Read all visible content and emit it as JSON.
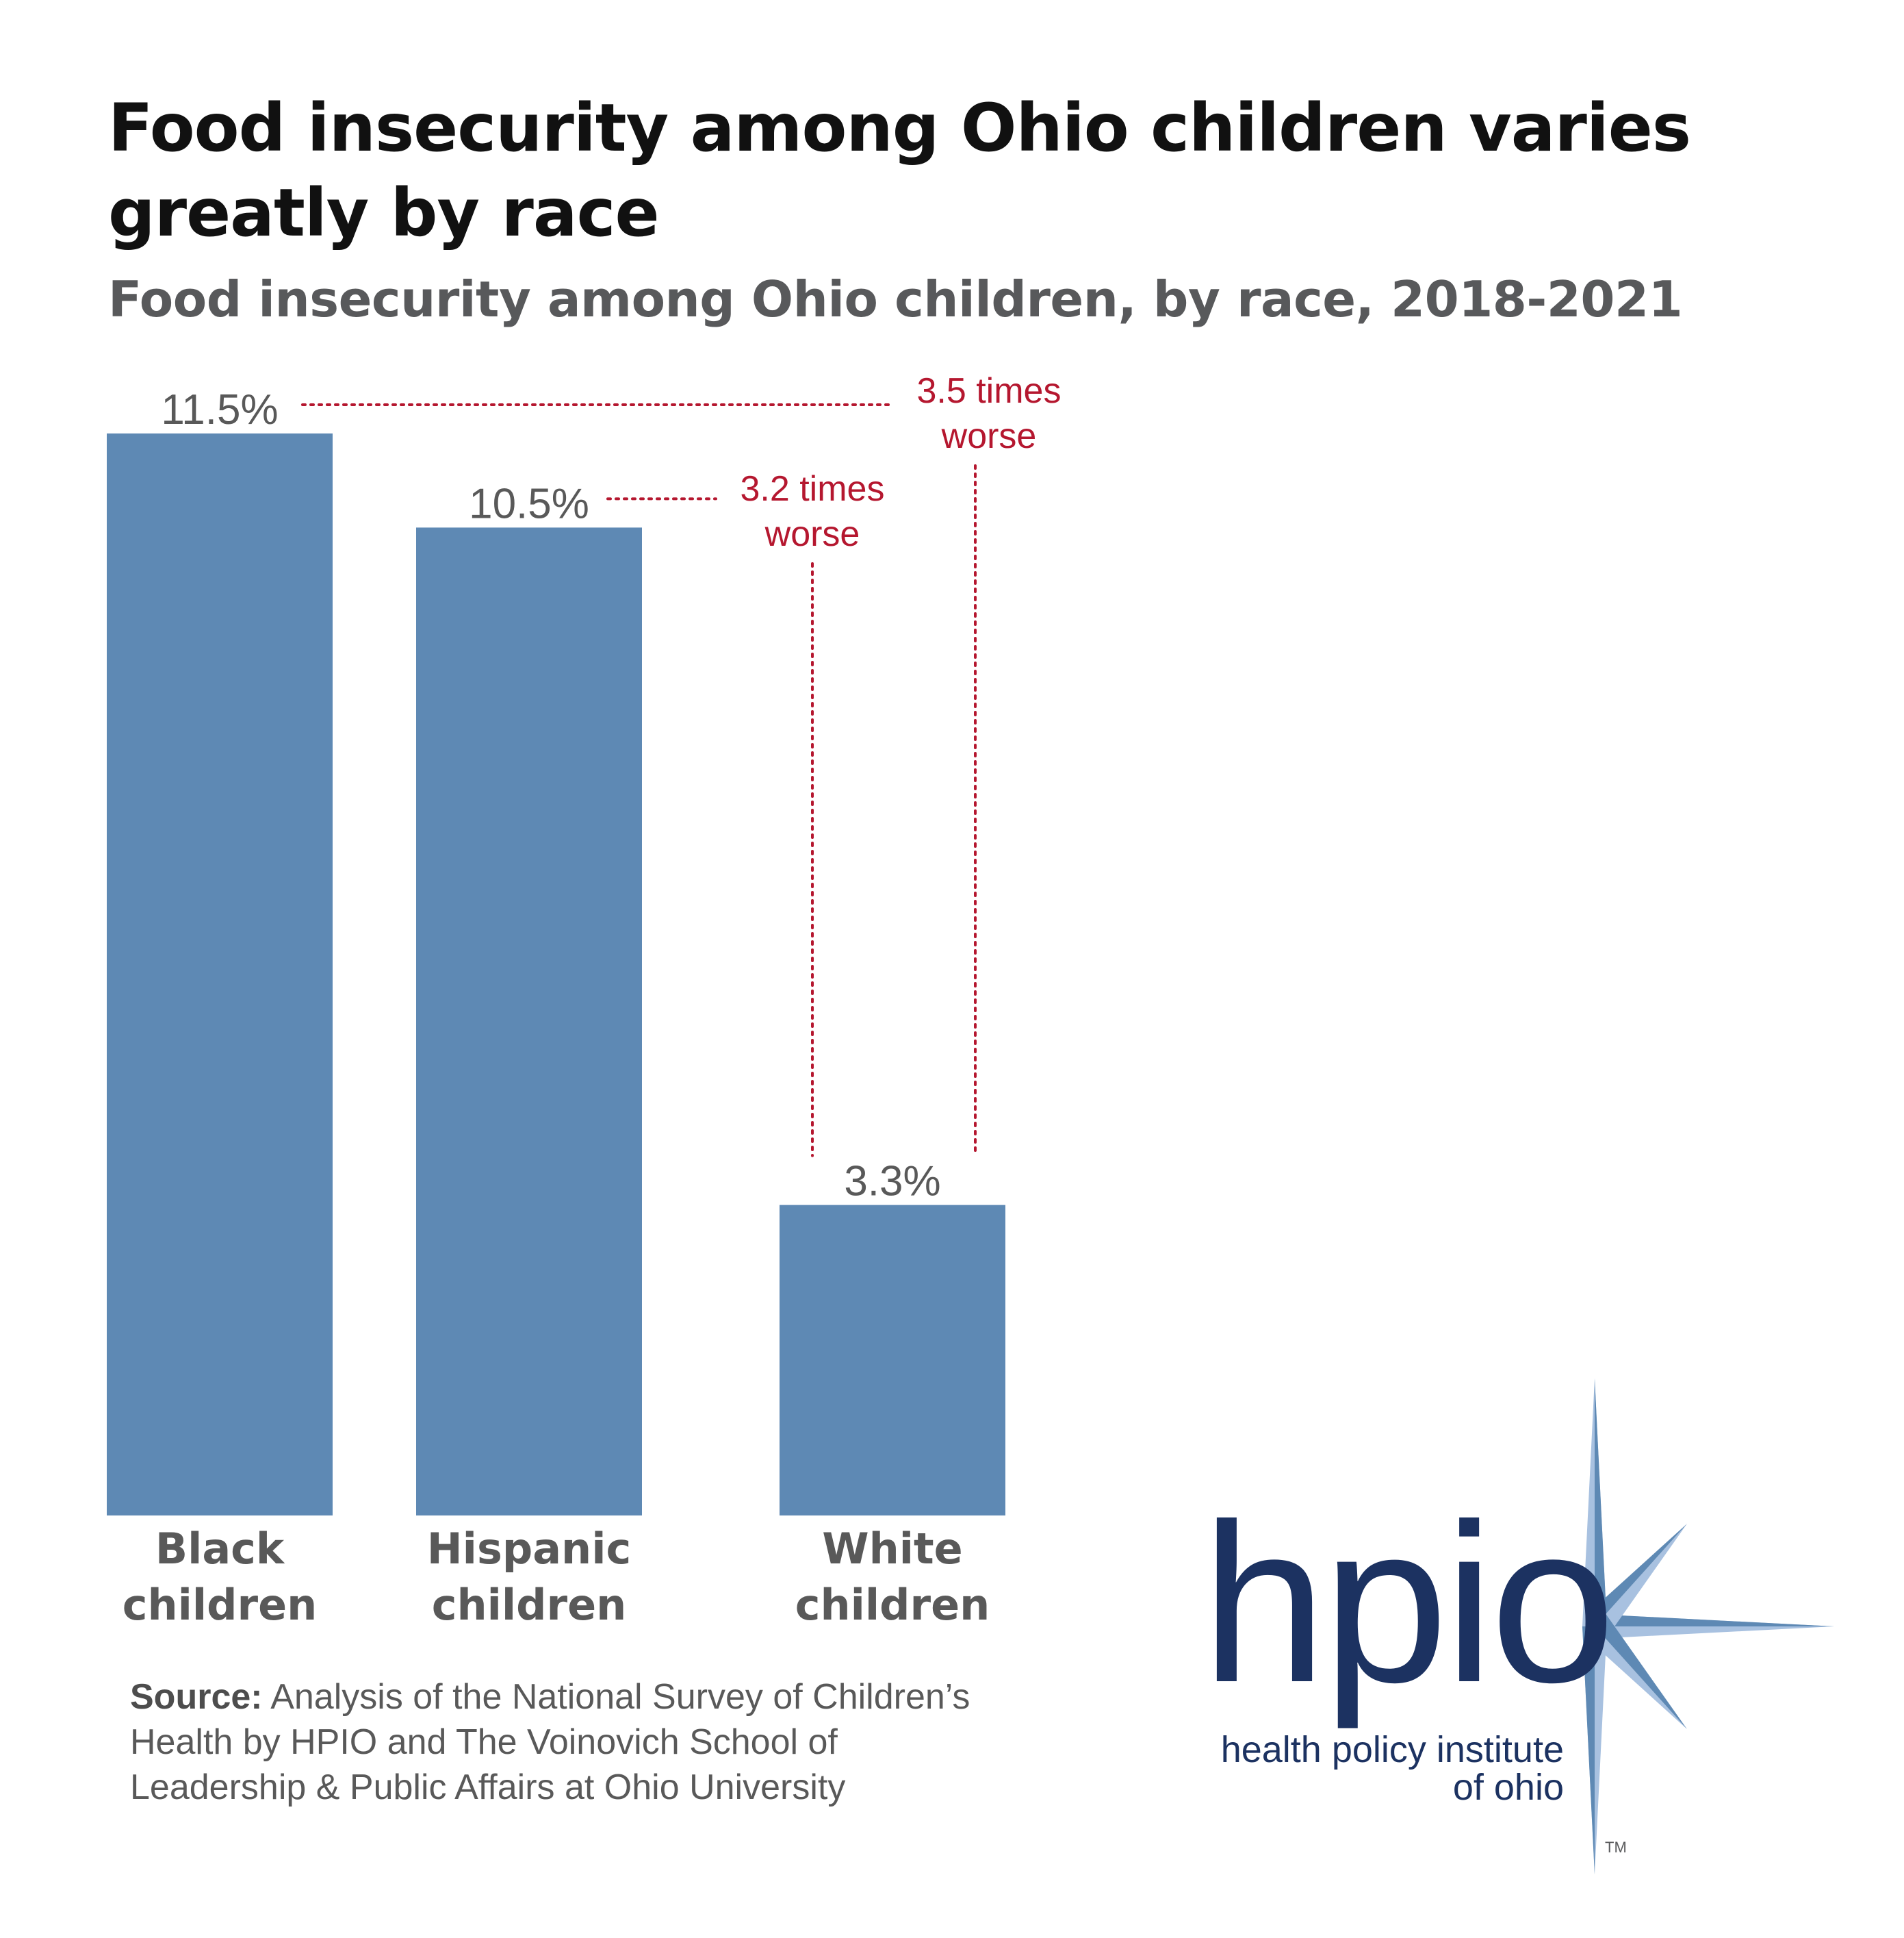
{
  "title": "Food insecurity among Ohio children varies greatly by race",
  "subtitle": "Food insecurity among Ohio children, by race, 2018-2021",
  "colors": {
    "bar": "#5e89b4",
    "annotation": "#b5172f",
    "label": "#595959",
    "logo": "#1c3261"
  },
  "chart_data": {
    "type": "bar",
    "title": "Food insecurity among Ohio children varies greatly by race",
    "subtitle": "Food insecurity among Ohio children, by race, 2018-2021",
    "categories": [
      "Black children",
      "Hispanic children",
      "White children"
    ],
    "category_lines": [
      [
        "Black",
        "children"
      ],
      [
        "Hispanic",
        "children"
      ],
      [
        "White",
        "children"
      ]
    ],
    "values": [
      11.5,
      10.5,
      3.3
    ],
    "value_labels": [
      "11.5%",
      "10.5%",
      "3.3%"
    ],
    "unit": "%",
    "ylim": [
      0,
      11.5
    ],
    "grid": false,
    "annotations": [
      {
        "lines": [
          "3.5 times",
          "worse"
        ],
        "from": "Black children",
        "to": "White children"
      },
      {
        "lines": [
          "3.2 times",
          "worse"
        ],
        "from": "Hispanic children",
        "to": "White children"
      }
    ]
  },
  "source": {
    "label": "Source:",
    "text": "Analysis of the National Survey of Children’s Health by HPIO and The Voinovich School of Leadership & Public Affairs at Ohio University"
  },
  "logo": {
    "wordmark": "hpio",
    "line1": "health policy institute",
    "line2": "of ohio",
    "tm": "TM"
  }
}
